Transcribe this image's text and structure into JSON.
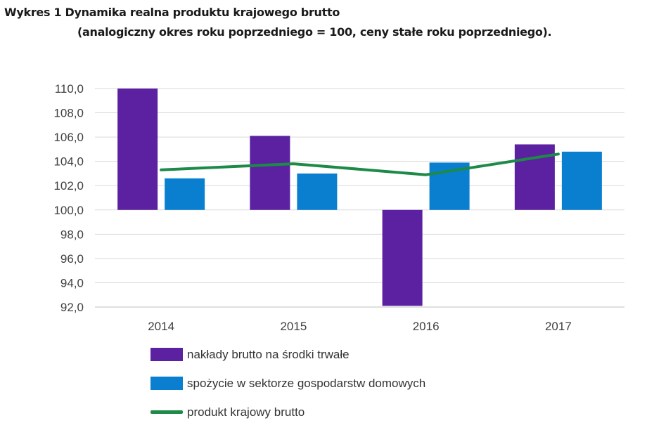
{
  "title_line1": "Wykres 1 Dynamika realna produktu krajowego brutto",
  "title_line2": "(analogiczny okres roku poprzedniego = 100, ceny stałe roku poprzedniego).",
  "colors": {
    "purple": "#5b21a0",
    "blue": "#0a7fd0",
    "green": "#1d8a47",
    "grid": "#d9d9d9",
    "axis": "#bfbfbf"
  },
  "chart_data": {
    "type": "bar",
    "categories": [
      "2014",
      "2015",
      "2016",
      "2017"
    ],
    "baseline": 100,
    "ylim": [
      92,
      110
    ],
    "yticks": [
      "110,0",
      "108,0",
      "106,0",
      "104,0",
      "102,0",
      "100,0",
      "98,0",
      "96,0",
      "94,0",
      "92,0"
    ],
    "series": [
      {
        "name": "nakłady brutto na środki trwałe",
        "type": "bar",
        "color": "#5b21a0",
        "values": [
          110.0,
          106.1,
          92.1,
          105.4
        ]
      },
      {
        "name": "spożycie w sektorze gospodarstw domowych",
        "type": "bar",
        "color": "#0a7fd0",
        "values": [
          102.6,
          103.0,
          103.9,
          104.8
        ]
      },
      {
        "name": "produkt krajowy brutto",
        "type": "line",
        "color": "#1d8a47",
        "values": [
          103.3,
          103.8,
          102.9,
          104.6
        ]
      }
    ],
    "legend_position": "bottom",
    "grid": true
  }
}
